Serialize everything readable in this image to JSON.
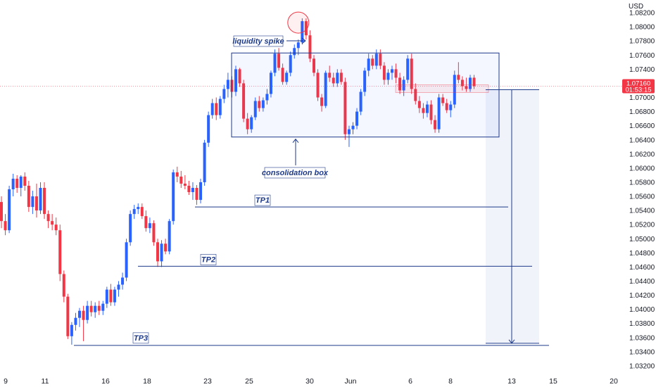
{
  "chart_data": {
    "type": "candlestick",
    "currency": "USD",
    "y_ticks": [
      "1.08200",
      "1.08000",
      "1.07800",
      "1.07600",
      "1.07400",
      "1.07200",
      "1.07000",
      "1.06800",
      "1.06600",
      "1.06400",
      "1.06200",
      "1.06000",
      "1.05800",
      "1.05600",
      "1.05400",
      "1.05200",
      "1.05000",
      "1.04800",
      "1.04600",
      "1.04400",
      "1.04200",
      "1.04000",
      "1.03800",
      "1.03600",
      "1.03400",
      "1.03200"
    ],
    "ylim": [
      1.0312,
      1.0838
    ],
    "x_ticks": [
      "9",
      "11",
      "16",
      "18",
      "23",
      "25",
      "30",
      "Jun",
      "6",
      "8",
      "13",
      "15",
      "20"
    ],
    "current_price": {
      "value": "1.07160",
      "countdown": "01:53:15",
      "price": 1.0716,
      "color": "#f23645"
    },
    "colors": {
      "up": "#2962ff",
      "down": "#f23645",
      "annotation": "#1e3a8a",
      "spike_circle": "#f23645"
    },
    "candles": [
      [
        1.0552,
        1.056,
        1.0515,
        1.0525
      ],
      [
        1.0525,
        1.0535,
        1.0505,
        1.0512
      ],
      [
        1.0512,
        1.0575,
        1.0508,
        1.057
      ],
      [
        1.057,
        1.0592,
        1.056,
        1.0585
      ],
      [
        1.0585,
        1.059,
        1.0565,
        1.0572
      ],
      [
        1.0572,
        1.059,
        1.056,
        1.0588
      ],
      [
        1.0588,
        1.0594,
        1.0568,
        1.0575
      ],
      [
        1.0575,
        1.0582,
        1.0538,
        1.0545
      ],
      [
        1.0545,
        1.0568,
        1.0535,
        1.056
      ],
      [
        1.056,
        1.0578,
        1.053,
        1.054
      ],
      [
        1.054,
        1.058,
        1.0535,
        1.0572
      ],
      [
        1.0572,
        1.058,
        1.0528,
        1.0535
      ],
      [
        1.0535,
        1.054,
        1.0515,
        1.0525
      ],
      [
        1.0525,
        1.0535,
        1.0512,
        1.052
      ],
      [
        1.052,
        1.053,
        1.0505,
        1.0512
      ],
      [
        1.0512,
        1.052,
        1.044,
        1.045
      ],
      [
        1.045,
        1.0455,
        1.041,
        1.0418
      ],
      [
        1.0418,
        1.0422,
        1.0358,
        1.0362
      ],
      [
        1.0362,
        1.0382,
        1.035,
        1.0378
      ],
      [
        1.0378,
        1.0395,
        1.037,
        1.0388
      ],
      [
        1.0388,
        1.0402,
        1.0375,
        1.0398
      ],
      [
        1.0398,
        1.0405,
        1.0355,
        1.0385
      ],
      [
        1.0385,
        1.0412,
        1.038,
        1.0405
      ],
      [
        1.0405,
        1.0412,
        1.039,
        1.0396
      ],
      [
        1.0396,
        1.041,
        1.0388,
        1.0405
      ],
      [
        1.0405,
        1.0412,
        1.0392,
        1.0398
      ],
      [
        1.0398,
        1.0412,
        1.0392,
        1.0408
      ],
      [
        1.0408,
        1.0432,
        1.0402,
        1.0428
      ],
      [
        1.0428,
        1.0436,
        1.0405,
        1.041
      ],
      [
        1.041,
        1.0432,
        1.0405,
        1.0428
      ],
      [
        1.0428,
        1.044,
        1.0418,
        1.0435
      ],
      [
        1.0435,
        1.0452,
        1.0428,
        1.0445
      ],
      [
        1.0445,
        1.05,
        1.044,
        1.0495
      ],
      [
        1.0495,
        1.054,
        1.049,
        1.0535
      ],
      [
        1.0535,
        1.0548,
        1.0528,
        1.0542
      ],
      [
        1.0542,
        1.055,
        1.0535,
        1.0545
      ],
      [
        1.0545,
        1.055,
        1.0528,
        1.0532
      ],
      [
        1.0532,
        1.054,
        1.051,
        1.0515
      ],
      [
        1.0515,
        1.053,
        1.0508,
        1.0522
      ],
      [
        1.0522,
        1.0526,
        1.049,
        1.0495
      ],
      [
        1.0495,
        1.05,
        1.046,
        1.0468
      ],
      [
        1.0468,
        1.0498,
        1.046,
        1.0493
      ],
      [
        1.0493,
        1.05,
        1.0478,
        1.0482
      ],
      [
        1.0482,
        1.0528,
        1.0478,
        1.0525
      ],
      [
        1.0525,
        1.0598,
        1.052,
        1.0594
      ],
      [
        1.0594,
        1.0602,
        1.058,
        1.0588
      ],
      [
        1.0588,
        1.0596,
        1.0572,
        1.0578
      ],
      [
        1.0578,
        1.059,
        1.057,
        1.0575
      ],
      [
        1.0575,
        1.0582,
        1.0562,
        1.0566
      ],
      [
        1.0566,
        1.058,
        1.0555,
        1.0572
      ],
      [
        1.0572,
        1.0576,
        1.0548,
        1.0555
      ],
      [
        1.0555,
        1.0585,
        1.055,
        1.058
      ],
      [
        1.058,
        1.064,
        1.0575,
        1.0636
      ],
      [
        1.0636,
        1.068,
        1.063,
        1.0675
      ],
      [
        1.0675,
        1.0698,
        1.067,
        1.0692
      ],
      [
        1.0692,
        1.07,
        1.0668,
        1.0675
      ],
      [
        1.0675,
        1.0702,
        1.067,
        1.0698
      ],
      [
        1.0698,
        1.0718,
        1.0692,
        1.0712
      ],
      [
        1.0712,
        1.0735,
        1.07,
        1.0725
      ],
      [
        1.0725,
        1.073,
        1.07,
        1.0708
      ],
      [
        1.0708,
        1.0745,
        1.0702,
        1.074
      ],
      [
        1.074,
        1.0742,
        1.0715,
        1.072
      ],
      [
        1.072,
        1.0725,
        1.0665,
        1.067
      ],
      [
        1.067,
        1.0678,
        1.0648,
        1.0655
      ],
      [
        1.0655,
        1.0675,
        1.065,
        1.0672
      ],
      [
        1.0672,
        1.07,
        1.0668,
        1.0695
      ],
      [
        1.0695,
        1.0702,
        1.068,
        1.0685
      ],
      [
        1.0685,
        1.07,
        1.068,
        1.0696
      ],
      [
        1.0696,
        1.0712,
        1.069,
        1.0705
      ],
      [
        1.0705,
        1.0738,
        1.07,
        1.0735
      ],
      [
        1.0735,
        1.0768,
        1.073,
        1.0762
      ],
      [
        1.0762,
        1.077,
        1.0738,
        1.0742
      ],
      [
        1.0742,
        1.0748,
        1.0718,
        1.0722
      ],
      [
        1.0722,
        1.0738,
        1.0718,
        1.0735
      ],
      [
        1.0735,
        1.0765,
        1.073,
        1.076
      ],
      [
        1.076,
        1.0775,
        1.0755,
        1.077
      ],
      [
        1.077,
        1.0782,
        1.076,
        1.0778
      ],
      [
        1.0778,
        1.0812,
        1.0775,
        1.0808
      ],
      [
        1.0808,
        1.0812,
        1.0782,
        1.0788
      ],
      [
        1.0788,
        1.0795,
        1.075,
        1.0755
      ],
      [
        1.0755,
        1.076,
        1.073,
        1.0735
      ],
      [
        1.0735,
        1.074,
        1.0695,
        1.07
      ],
      [
        1.07,
        1.0705,
        1.068,
        1.0688
      ],
      [
        1.0688,
        1.0738,
        1.0685,
        1.0735
      ],
      [
        1.0735,
        1.0745,
        1.0722,
        1.0728
      ],
      [
        1.0728,
        1.0735,
        1.0715,
        1.072
      ],
      [
        1.072,
        1.074,
        1.0715,
        1.0735
      ],
      [
        1.0735,
        1.074,
        1.0718,
        1.0722
      ],
      [
        1.0722,
        1.0728,
        1.064,
        1.0648
      ],
      [
        1.0648,
        1.066,
        1.063,
        1.0655
      ],
      [
        1.0655,
        1.0665,
        1.0648,
        1.066
      ],
      [
        1.066,
        1.0685,
        1.0655,
        1.068
      ],
      [
        1.068,
        1.0712,
        1.0675,
        1.0708
      ],
      [
        1.0708,
        1.0742,
        1.0702,
        1.0738
      ],
      [
        1.0738,
        1.0762,
        1.073,
        1.0755
      ],
      [
        1.0755,
        1.076,
        1.074,
        1.0745
      ],
      [
        1.0745,
        1.0768,
        1.074,
        1.0762
      ],
      [
        1.0762,
        1.0768,
        1.074,
        1.0745
      ],
      [
        1.0745,
        1.075,
        1.0718,
        1.0725
      ],
      [
        1.0725,
        1.074,
        1.0718,
        1.0735
      ],
      [
        1.0735,
        1.0745,
        1.0725,
        1.074
      ],
      [
        1.074,
        1.0748,
        1.072,
        1.0728
      ],
      [
        1.0728,
        1.0735,
        1.0705,
        1.071
      ],
      [
        1.071,
        1.073,
        1.0702,
        1.0725
      ],
      [
        1.0725,
        1.076,
        1.072,
        1.0755
      ],
      [
        1.0755,
        1.0762,
        1.0705,
        1.0712
      ],
      [
        1.0712,
        1.072,
        1.069,
        1.0695
      ],
      [
        1.0695,
        1.0702,
        1.0678,
        1.0685
      ],
      [
        1.0685,
        1.0692,
        1.067,
        1.0678
      ],
      [
        1.0678,
        1.0695,
        1.0672,
        1.069
      ],
      [
        1.069,
        1.0696,
        1.0662,
        1.0668
      ],
      [
        1.0668,
        1.0675,
        1.065,
        1.0655
      ],
      [
        1.0655,
        1.0705,
        1.065,
        1.07
      ],
      [
        1.07,
        1.0705,
        1.0688,
        1.0692
      ],
      [
        1.0692,
        1.0698,
        1.0678,
        1.0682
      ],
      [
        1.0682,
        1.0695,
        1.0672,
        1.069
      ],
      [
        1.069,
        1.0738,
        1.0685,
        1.0732
      ],
      [
        1.0732,
        1.075,
        1.072,
        1.0725
      ],
      [
        1.0725,
        1.073,
        1.071,
        1.0716
      ],
      [
        1.0716,
        1.0728,
        1.0708,
        1.0712
      ],
      [
        1.0712,
        1.0732,
        1.0708,
        1.0728
      ],
      [
        1.0728,
        1.0732,
        1.0712,
        1.0716
      ]
    ],
    "annotations": {
      "liquidity_spike": "liquidity spike",
      "consolidation_box": "consolidation box",
      "tp1": "TP1",
      "tp2": "TP2",
      "tp3": "TP3"
    },
    "levels": {
      "tp1": 1.0545,
      "tp2": 1.0461,
      "tp3": 1.0349,
      "box_top": 1.0763,
      "box_bottom": 1.0644,
      "entry": 1.0711,
      "target": 1.0352,
      "entry_zone_top": 1.0718,
      "entry_zone_bottom": 1.0707,
      "spike_high": 1.0812
    }
  }
}
